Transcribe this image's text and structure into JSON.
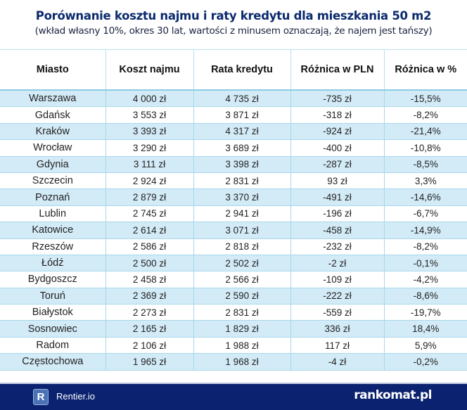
{
  "title": "Porównanie kosztu najmu i raty kredytu dla mieszkania 50 m2",
  "subtitle": "(wkład własny 10%, okres 30 lat, wartości z minusem oznaczają, że najem jest tańszy)",
  "table": {
    "headers": [
      "Miasto",
      "Koszt najmu",
      "Rata kredytu",
      "Różnica w PLN",
      "Różnica w %"
    ],
    "rows": [
      [
        "Warszawa",
        "4 000 zł",
        "4 735 zł",
        "-735 zł",
        "-15,5%"
      ],
      [
        "Gdańsk",
        "3 553 zł",
        "3 871 zł",
        "-318 zł",
        "-8,2%"
      ],
      [
        "Kraków",
        "3 393 zł",
        "4 317 zł",
        "-924 zł",
        "-21,4%"
      ],
      [
        "Wrocław",
        "3 290 zł",
        "3 689 zł",
        "-400 zł",
        "-10,8%"
      ],
      [
        "Gdynia",
        "3 111 zł",
        "3 398 zł",
        "-287 zł",
        "-8,5%"
      ],
      [
        "Szczecin",
        "2 924 zł",
        "2 831 zł",
        "93 zł",
        "3,3%"
      ],
      [
        "Poznań",
        "2 879 zł",
        "3 370 zł",
        "-491 zł",
        "-14,6%"
      ],
      [
        "Lublin",
        "2 745 zł",
        "2 941 zł",
        "-196 zł",
        "-6,7%"
      ],
      [
        "Katowice",
        "2 614 zł",
        "3 071 zł",
        "-458 zł",
        "-14,9%"
      ],
      [
        "Rzeszów",
        "2 586 zł",
        "2 818 zł",
        "-232 zł",
        "-8,2%"
      ],
      [
        "Łódź",
        "2 500 zł",
        "2 502 zł",
        "-2 zł",
        "-0,1%"
      ],
      [
        "Bydgoszcz",
        "2 458 zł",
        "2 566 zł",
        "-109 zł",
        "-4,2%"
      ],
      [
        "Toruń",
        "2 369 zł",
        "2 590 zł",
        "-222 zł",
        "-8,6%"
      ],
      [
        "Białystok",
        "2 273 zł",
        "2 831 zł",
        "-559 zł",
        "-19,7%"
      ],
      [
        "Sosnowiec",
        "2 165 zł",
        "1 829 zł",
        "336 zł",
        "18,4%"
      ],
      [
        "Radom",
        "2 106 zł",
        "1 988 zł",
        "117 zł",
        "5,9%"
      ],
      [
        "Częstochowa",
        "1 965 zł",
        "1 968 zł",
        "-4 zł",
        "-0,2%"
      ]
    ]
  },
  "footer": {
    "left_logo_letter": "R",
    "left_brand": "Rentier.io",
    "right_brand": "rankomat.pl"
  }
}
